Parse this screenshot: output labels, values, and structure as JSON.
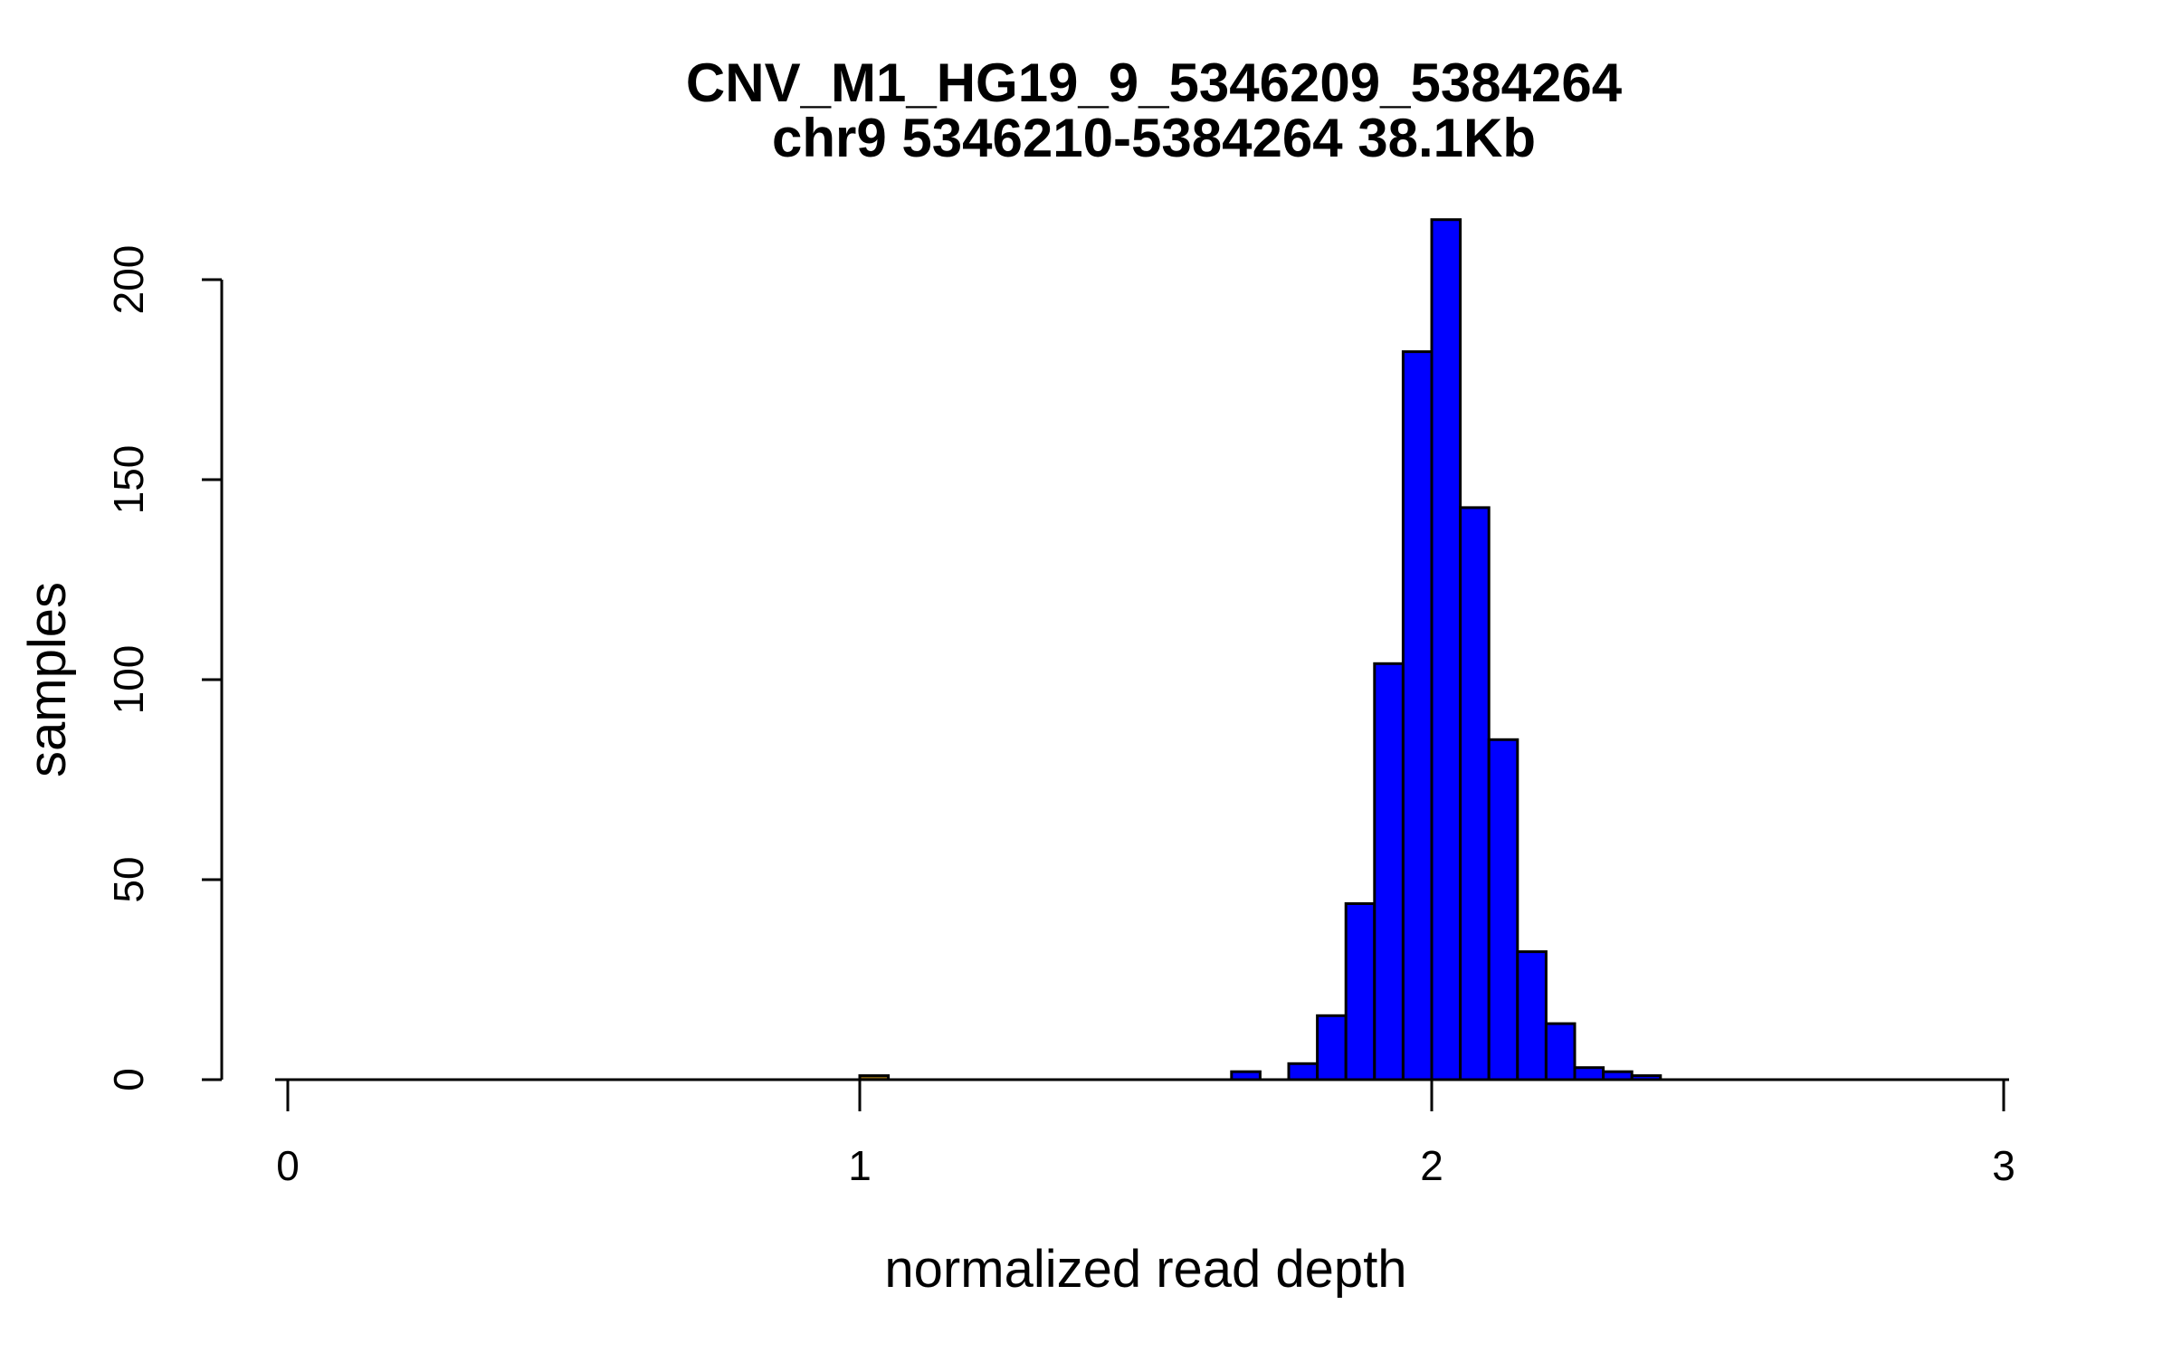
{
  "page": {
    "background_color": "#FFFFFF"
  },
  "chart_data": {
    "type": "bar",
    "subtype": "histogram",
    "title": "CNV_M1_HG19_9_5346209_5384264",
    "subtitle": "chr9 5346210-5384264 38.1Kb",
    "xlabel": "normalized read depth",
    "ylabel": "samples",
    "xlim": [
      0,
      3
    ],
    "ylim": [
      0,
      215
    ],
    "x_ticks": [
      0,
      1,
      2,
      3
    ],
    "y_ticks": [
      0,
      50,
      100,
      150,
      200
    ],
    "grid": false,
    "legend": "none",
    "bar_color": "#0000FF",
    "bar_border_color": "#000000",
    "highlight_bar_color": "#8B6914",
    "bin_width": 0.05,
    "bins": [
      {
        "x": 1.0,
        "count": 1,
        "highlight": true
      },
      {
        "x": 1.65,
        "count": 2
      },
      {
        "x": 1.7,
        "count": 0
      },
      {
        "x": 1.75,
        "count": 4
      },
      {
        "x": 1.8,
        "count": 16
      },
      {
        "x": 1.85,
        "count": 44
      },
      {
        "x": 1.9,
        "count": 104
      },
      {
        "x": 1.95,
        "count": 182
      },
      {
        "x": 2.0,
        "count": 215
      },
      {
        "x": 2.05,
        "count": 143
      },
      {
        "x": 2.1,
        "count": 85
      },
      {
        "x": 2.15,
        "count": 32
      },
      {
        "x": 2.2,
        "count": 14
      },
      {
        "x": 2.25,
        "count": 3
      },
      {
        "x": 2.3,
        "count": 2
      },
      {
        "x": 2.35,
        "count": 1
      }
    ]
  }
}
